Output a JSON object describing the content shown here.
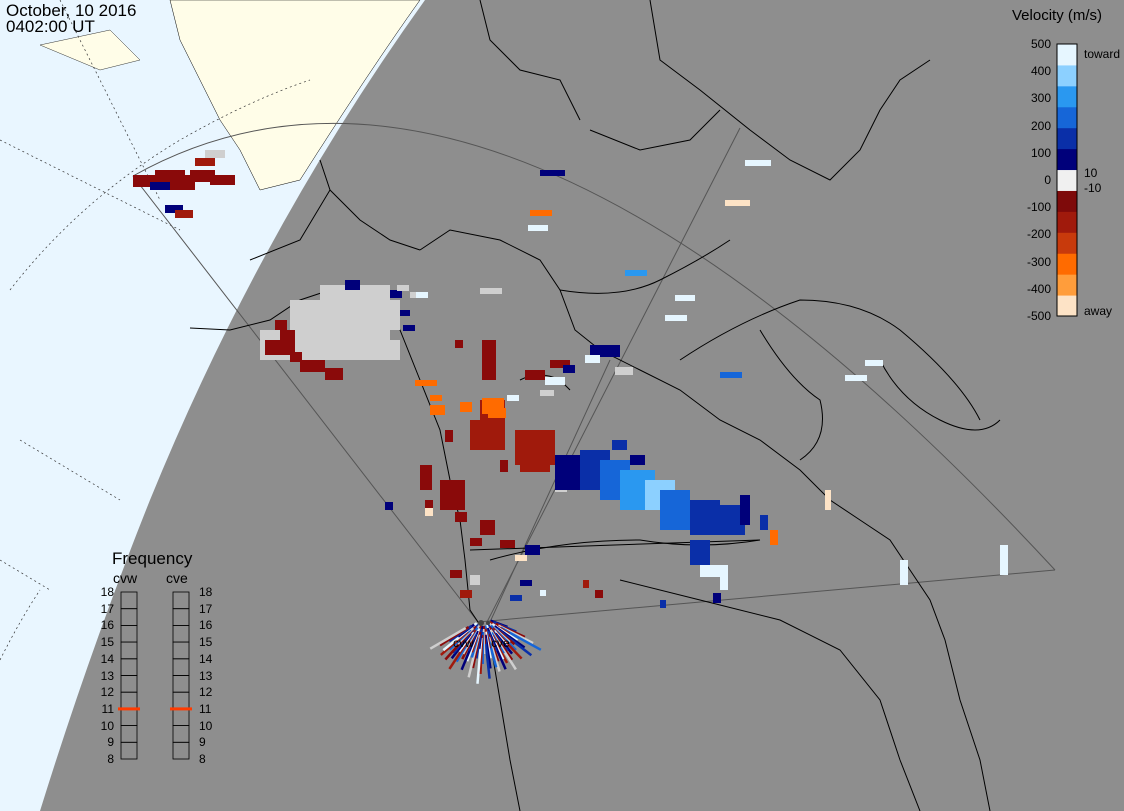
{
  "header": {
    "date": "October, 10 2016",
    "time": "0402:00 UT"
  },
  "colorbar": {
    "title": "Velocity (m/s)",
    "ticks": [
      "500",
      "400",
      "300",
      "200",
      "100",
      "0",
      "-100",
      "-200",
      "-300",
      "-400",
      "-500"
    ],
    "inner_labels": [
      "10",
      "-10"
    ],
    "toward_label": "toward",
    "away_label": "away",
    "colors": [
      "#fde3c6",
      "#ff9d3b",
      "#ff6b00",
      "#c83a0c",
      "#a01a0c",
      "#7e0a0a",
      "#f0f0f0",
      "#00007a",
      "#0a2fa8",
      "#1666d8",
      "#2a98f0",
      "#8cd0ff",
      "#e6f6ff"
    ]
  },
  "frequency": {
    "title": "Frequency",
    "radars": [
      "cvw",
      "cve"
    ],
    "scale": [
      "18",
      "17",
      "16",
      "15",
      "14",
      "13",
      "12",
      "11",
      "10",
      "9",
      "8"
    ],
    "current_mhz": {
      "cvw": 11,
      "cve": 11
    },
    "marker_color": "#ff3b00"
  },
  "radar_sites": [
    "cvw",
    "cve"
  ],
  "map_colors": {
    "land": "#8e8e8e",
    "night_region": "#e9f6ff",
    "land_in_day": "#fffde8",
    "coast": "#000000"
  }
}
